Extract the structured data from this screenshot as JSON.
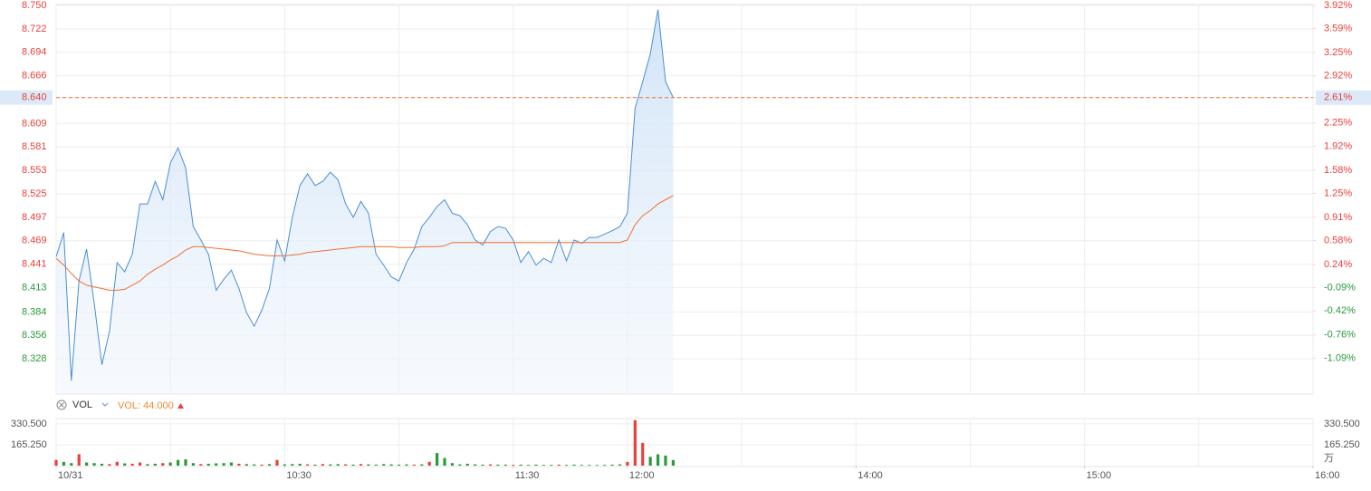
{
  "chart_data": [
    {
      "type": "line",
      "x": [
        0,
        2,
        4,
        6,
        8,
        10,
        12,
        14,
        16,
        18,
        20,
        22,
        24,
        26,
        28,
        30,
        32,
        34,
        36,
        38,
        40,
        42,
        44,
        46,
        48,
        50,
        52,
        54,
        56,
        58,
        60,
        62,
        64,
        66,
        68,
        70,
        72,
        74,
        76,
        78,
        80,
        82,
        84,
        86,
        88,
        90,
        92,
        94,
        96,
        98,
        100,
        102,
        104,
        106,
        108,
        110,
        112,
        114,
        116,
        118,
        120,
        122,
        124,
        126,
        128,
        130,
        132,
        134,
        136,
        138,
        140,
        142,
        144,
        146,
        148,
        150,
        152,
        154,
        156,
        158,
        160,
        162
      ],
      "xlim": [
        0,
        330
      ],
      "x_grid_interval": 30,
      "ylim": [
        8.286,
        8.75
      ],
      "yticks": [
        {
          "value": 8.75,
          "label": "8.750"
        },
        8.722,
        8.694,
        8.666,
        {
          "value": 8.64,
          "label": "8.640"
        },
        8.609,
        8.581,
        8.553,
        8.525,
        8.497,
        8.469,
        8.441,
        8.413,
        8.384,
        8.356,
        8.328
      ],
      "y2lim": [
        -1.6,
        3.92
      ],
      "y2ticks": [
        {
          "value": 3.92,
          "label": "3.92%"
        },
        {
          "value": 3.59,
          "label": "3.59%"
        },
        {
          "value": 3.25,
          "label": "3.25%"
        },
        {
          "value": 2.92,
          "label": "2.92%"
        },
        {
          "value": 2.61,
          "label": "2.61%"
        },
        {
          "value": 2.25,
          "label": "2.25%"
        },
        {
          "value": 1.92,
          "label": "1.92%"
        },
        {
          "value": 1.58,
          "label": "1.58%"
        },
        {
          "value": 1.25,
          "label": "1.25%"
        },
        {
          "value": 0.91,
          "label": "0.91%"
        },
        {
          "value": 0.58,
          "label": "0.58%"
        },
        {
          "value": 0.24,
          "label": "0.24%"
        },
        {
          "value": -0.09,
          "label": "-0.09%"
        },
        {
          "value": -0.42,
          "label": "-0.42%"
        },
        {
          "value": -0.76,
          "label": "-0.76%"
        },
        {
          "value": -1.09,
          "label": "-1.09%"
        }
      ],
      "grid": true,
      "rise_color": "#e8403a",
      "fall_color": "#2a9a3a",
      "series": [
        {
          "color": "#4a8fd6",
          "fill": true,
          "values": [
            8.45,
            8.479,
            8.302,
            8.421,
            8.459,
            8.394,
            8.321,
            8.361,
            8.443,
            8.432,
            8.453,
            8.513,
            8.513,
            8.54,
            8.518,
            8.562,
            8.58,
            8.556,
            8.486,
            8.47,
            8.453,
            8.41,
            8.423,
            8.434,
            8.412,
            8.383,
            8.367,
            8.386,
            8.412,
            8.47,
            8.445,
            8.497,
            8.535,
            8.549,
            8.535,
            8.54,
            8.551,
            8.542,
            8.513,
            8.497,
            8.516,
            8.502,
            8.453,
            8.44,
            8.426,
            8.421,
            8.443,
            8.459,
            8.486,
            8.497,
            8.51,
            8.518,
            8.502,
            8.499,
            8.488,
            8.47,
            8.464,
            8.48,
            8.486,
            8.484,
            8.47,
            8.443,
            8.456,
            8.44,
            8.448,
            8.443,
            8.47,
            8.445,
            8.47,
            8.466,
            8.473,
            8.473,
            8.477,
            8.481,
            8.486,
            8.502,
            8.627,
            8.659,
            8.692,
            8.745,
            8.659,
            8.64
          ]
        },
        {
          "color": "#f07030",
          "fill": false,
          "values": [
            8.448,
            8.44,
            8.43,
            8.421,
            8.416,
            8.414,
            8.412,
            8.41,
            8.41,
            8.411,
            8.416,
            8.421,
            8.429,
            8.435,
            8.44,
            8.446,
            8.451,
            8.458,
            8.462,
            8.462,
            8.461,
            8.46,
            8.459,
            8.458,
            8.457,
            8.455,
            8.453,
            8.452,
            8.451,
            8.451,
            8.451,
            8.452,
            8.453,
            8.455,
            8.456,
            8.457,
            8.458,
            8.459,
            8.46,
            8.461,
            8.462,
            8.462,
            8.462,
            8.462,
            8.462,
            8.461,
            8.461,
            8.461,
            8.462,
            8.462,
            8.462,
            8.463,
            8.467,
            8.467,
            8.467,
            8.467,
            8.467,
            8.467,
            8.467,
            8.467,
            8.467,
            8.467,
            8.467,
            8.467,
            8.467,
            8.467,
            8.467,
            8.467,
            8.467,
            8.467,
            8.467,
            8.467,
            8.467,
            8.467,
            8.467,
            8.47,
            8.488,
            8.499,
            8.505,
            8.513,
            8.518,
            8.523
          ]
        }
      ]
    },
    {
      "type": "bar",
      "indicator": "VOL",
      "indicator_value_label": "VOL: 44.000",
      "x": [
        0,
        2,
        4,
        6,
        8,
        10,
        12,
        14,
        16,
        18,
        20,
        22,
        24,
        26,
        28,
        30,
        32,
        34,
        36,
        38,
        40,
        42,
        44,
        46,
        48,
        50,
        52,
        54,
        56,
        58,
        60,
        62,
        64,
        66,
        68,
        70,
        72,
        74,
        76,
        78,
        80,
        82,
        84,
        86,
        88,
        90,
        92,
        94,
        96,
        98,
        100,
        102,
        104,
        106,
        108,
        110,
        112,
        114,
        116,
        118,
        120,
        122,
        124,
        126,
        128,
        130,
        132,
        134,
        136,
        138,
        140,
        142,
        144,
        146,
        148,
        150,
        152,
        154,
        156,
        158,
        160,
        162
      ],
      "xlim": [
        0,
        330
      ],
      "xticks": [
        {
          "value": 0,
          "label": "10/31"
        },
        {
          "value": 60,
          "label": "10:30"
        },
        {
          "value": 120,
          "label": "11:30"
        },
        {
          "value": 150,
          "label": "12:00"
        },
        {
          "value": 210,
          "label": "14:00"
        },
        {
          "value": 270,
          "label": "15:00"
        },
        {
          "value": 330,
          "label": "16:00"
        }
      ],
      "x_grid_interval": 30,
      "ylim": [
        0,
        373
      ],
      "yticks": [
        {
          "value": 330.5,
          "label": "330.500"
        },
        {
          "value": 165.25,
          "label": "165.250"
        }
      ],
      "unit_label": "万",
      "values": [
        45,
        30,
        20,
        90,
        25,
        20,
        15,
        12,
        30,
        18,
        15,
        25,
        12,
        15,
        20,
        25,
        45,
        50,
        20,
        12,
        15,
        18,
        20,
        25,
        15,
        12,
        10,
        8,
        12,
        45,
        10,
        12,
        15,
        10,
        8,
        12,
        10,
        12,
        10,
        8,
        12,
        10,
        8,
        12,
        10,
        8,
        10,
        8,
        10,
        30,
        100,
        60,
        20,
        10,
        15,
        10,
        8,
        10,
        8,
        8,
        6,
        8,
        6,
        8,
        6,
        6,
        8,
        6,
        8,
        6,
        6,
        5,
        6,
        8,
        10,
        30,
        360,
        180,
        70,
        90,
        80,
        44
      ],
      "colors": [
        "#e8403a",
        "#2a9a3a",
        "#2a9a3a",
        "#e8403a",
        "#2a9a3a",
        "#2a9a3a",
        "#2a9a3a",
        "#e8403a",
        "#e8403a",
        "#2a9a3a",
        "#e8403a",
        "#e8403a",
        "#2a9a3a",
        "#2a9a3a",
        "#e8403a",
        "#2a9a3a",
        "#2a9a3a",
        "#2a9a3a",
        "#2a9a3a",
        "#e8403a",
        "#2a9a3a",
        "#2a9a3a",
        "#2a9a3a",
        "#2a9a3a",
        "#e8403a",
        "#2a9a3a",
        "#2a9a3a",
        "#e8403a",
        "#2a9a3a",
        "#e8403a",
        "#2a9a3a",
        "#2a9a3a",
        "#2a9a3a",
        "#e8403a",
        "#2a9a3a",
        "#e8403a",
        "#2a9a3a",
        "#2a9a3a",
        "#e8403a",
        "#2a9a3a",
        "#e8403a",
        "#2a9a3a",
        "#2a9a3a",
        "#2a9a3a",
        "#2a9a3a",
        "#2a9a3a",
        "#2a9a3a",
        "#e8403a",
        "#2a9a3a",
        "#e8403a",
        "#2a9a3a",
        "#2a9a3a",
        "#2a9a3a",
        "#2a9a3a",
        "#2a9a3a",
        "#2a9a3a",
        "#2a9a3a",
        "#e8403a",
        "#2a9a3a",
        "#2a9a3a",
        "#e8403a",
        "#2a9a3a",
        "#2a9a3a",
        "#2a9a3a",
        "#2a9a3a",
        "#2a9a3a",
        "#e8403a",
        "#2a9a3a",
        "#2a9a3a",
        "#2a9a3a",
        "#2a9a3a",
        "#2a9a3a",
        "#2a9a3a",
        "#2a9a3a",
        "#2a9a3a",
        "#e8403a",
        "#e8403a",
        "#e8403a",
        "#2a9a3a",
        "#2a9a3a",
        "#2a9a3a",
        "#2a9a3a"
      ]
    }
  ]
}
